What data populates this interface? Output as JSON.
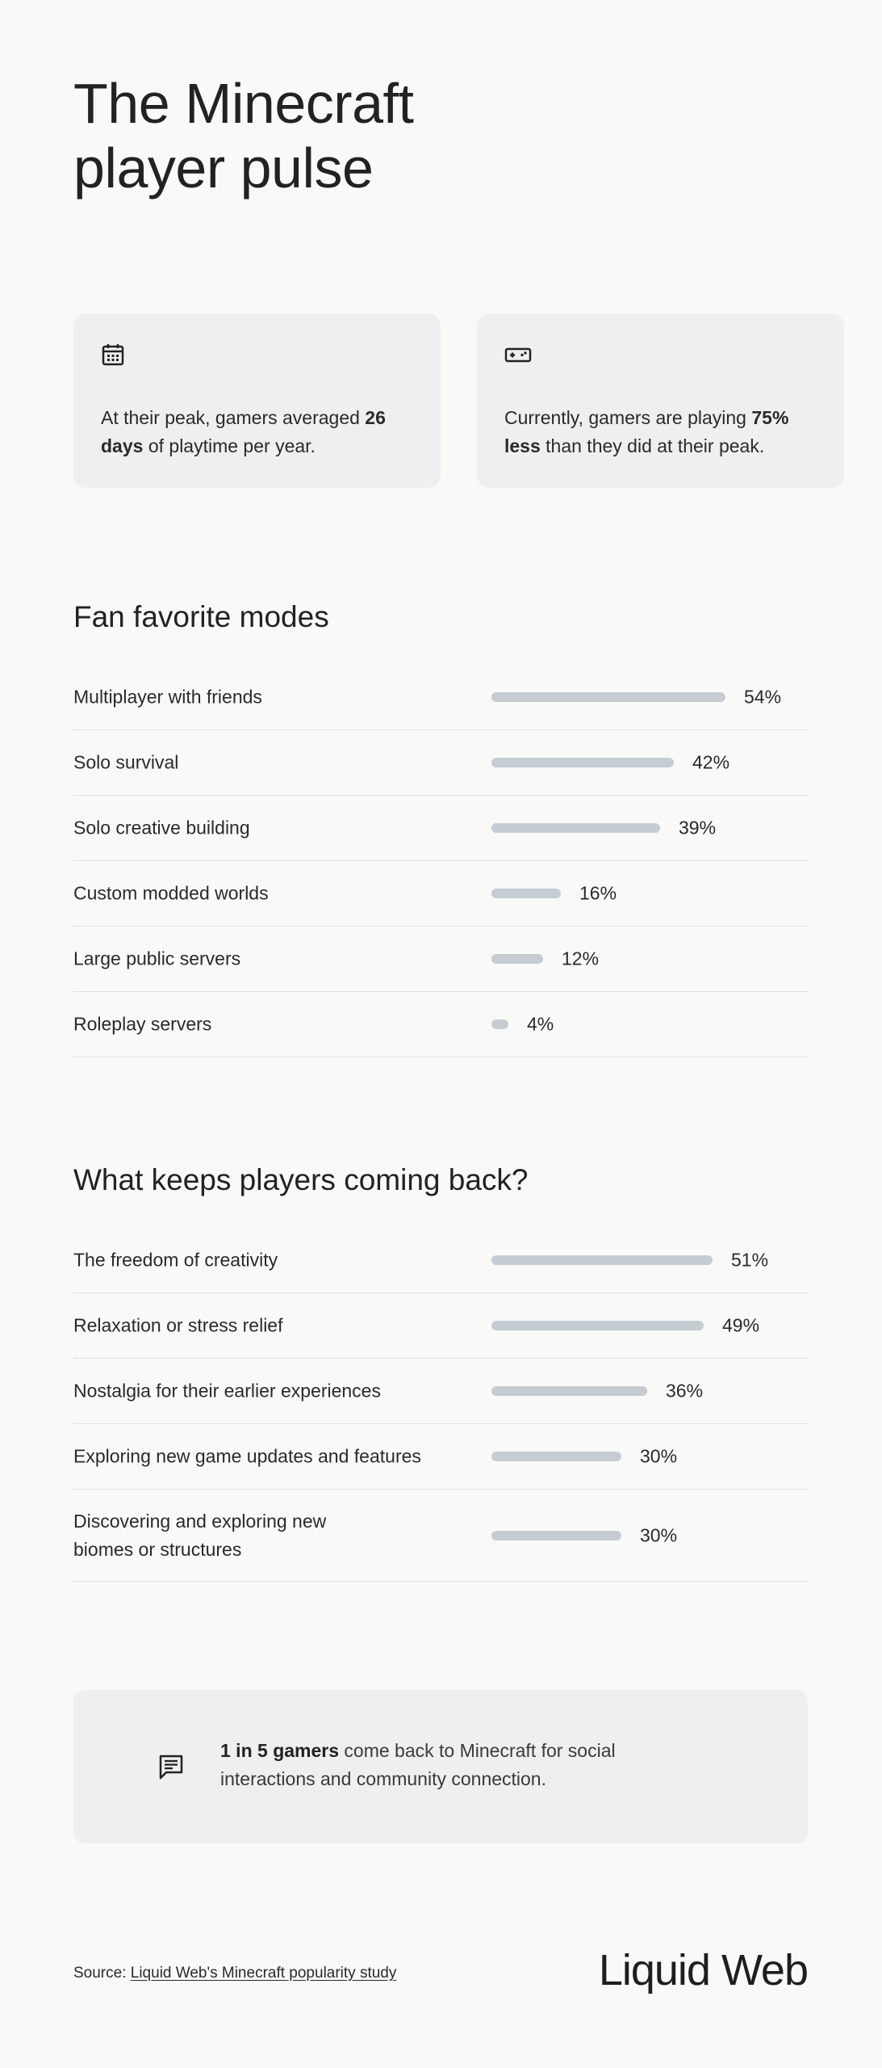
{
  "title": "The Minecraft player pulse",
  "stats": [
    {
      "icon": "calendar-icon",
      "pre": "At their peak, gamers averaged ",
      "bold": "26 days",
      "post": " of playtime per year."
    },
    {
      "icon": "gamepad-icon",
      "pre": "Currently, gamers are playing ",
      "bold": "75% less",
      "post": " than they did at their peak."
    }
  ],
  "chart_data": [
    {
      "type": "bar",
      "title": "Fan favorite modes",
      "categories": [
        "Multiplayer with friends",
        "Solo survival",
        "Solo creative building",
        "Custom modded worlds",
        "Large public servers",
        "Roleplay servers"
      ],
      "values": [
        54,
        42,
        39,
        16,
        12,
        4
      ],
      "value_labels": [
        "54%",
        "42%",
        "39%",
        "16%",
        "12%",
        "4%"
      ],
      "unit": "%",
      "bar_color": "#c5cdd3",
      "orientation": "horizontal"
    },
    {
      "type": "bar",
      "title": "What keeps players coming back?",
      "categories": [
        "The freedom of creativity",
        "Relaxation or stress relief",
        "Nostalgia for their earlier experiences",
        "Exploring new game updates and features",
        "Discovering and exploring new biomes or structures"
      ],
      "values": [
        51,
        49,
        36,
        30,
        30
      ],
      "value_labels": [
        "51%",
        "49%",
        "36%",
        "30%",
        "30%"
      ],
      "unit": "%",
      "bar_color": "#c5cdd3",
      "orientation": "horizontal"
    }
  ],
  "callout": {
    "icon": "chat-icon",
    "bold": "1 in 5 gamers",
    "text": " come back to Minecraft for social interactions and community connection."
  },
  "footer": {
    "source_prefix": "Source: ",
    "source_link": "Liquid Web's Minecraft popularity study",
    "logo": "Liquid Web"
  },
  "colors": {
    "background": "#f9f9f8",
    "card": "#eeeff1",
    "bar": "#c5cdd3",
    "text": "#222222"
  }
}
